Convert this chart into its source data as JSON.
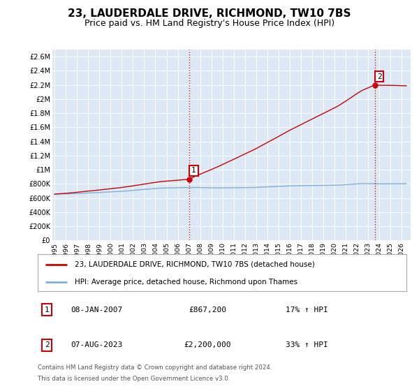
{
  "title": "23, LAUDERDALE DRIVE, RICHMOND, TW10 7BS",
  "subtitle": "Price paid vs. HM Land Registry's House Price Index (HPI)",
  "title_fontsize": 11,
  "subtitle_fontsize": 9,
  "ylabel_ticks": [
    "£0",
    "£200K",
    "£400K",
    "£600K",
    "£800K",
    "£1M",
    "£1.2M",
    "£1.4M",
    "£1.6M",
    "£1.8M",
    "£2M",
    "£2.2M",
    "£2.4M",
    "£2.6M"
  ],
  "ytick_vals": [
    0,
    200000,
    400000,
    600000,
    800000,
    1000000,
    1200000,
    1400000,
    1600000,
    1800000,
    2000000,
    2200000,
    2400000,
    2600000
  ],
  "ylim": [
    0,
    2700000
  ],
  "xlim_start": 1994.8,
  "xlim_end": 2026.8,
  "xtick_years": [
    1995,
    1996,
    1997,
    1998,
    1999,
    2000,
    2001,
    2002,
    2003,
    2004,
    2005,
    2006,
    2007,
    2008,
    2009,
    2010,
    2011,
    2012,
    2013,
    2014,
    2015,
    2016,
    2017,
    2018,
    2019,
    2020,
    2021,
    2022,
    2023,
    2024,
    2025,
    2026
  ],
  "line1_color": "#cc0000",
  "line2_color": "#7fafd4",
  "vline_color": "#cc0000",
  "sale1_x": 2007.03,
  "sale1_y": 867200,
  "sale1_label": "1",
  "sale2_x": 2023.6,
  "sale2_y": 2200000,
  "sale2_label": "2",
  "legend_line1": "23, LAUDERDALE DRIVE, RICHMOND, TW10 7BS (detached house)",
  "legend_line2": "HPI: Average price, detached house, Richmond upon Thames",
  "table_row1": [
    "1",
    "08-JAN-2007",
    "£867,200",
    "17% ↑ HPI"
  ],
  "table_row2": [
    "2",
    "07-AUG-2023",
    "£2,200,000",
    "33% ↑ HPI"
  ],
  "footer1": "Contains HM Land Registry data © Crown copyright and database right 2024.",
  "footer2": "This data is licensed under the Open Government Licence v3.0.",
  "bg_color": "#ffffff",
  "plot_bg_color": "#dce9f5",
  "grid_color": "#ffffff"
}
